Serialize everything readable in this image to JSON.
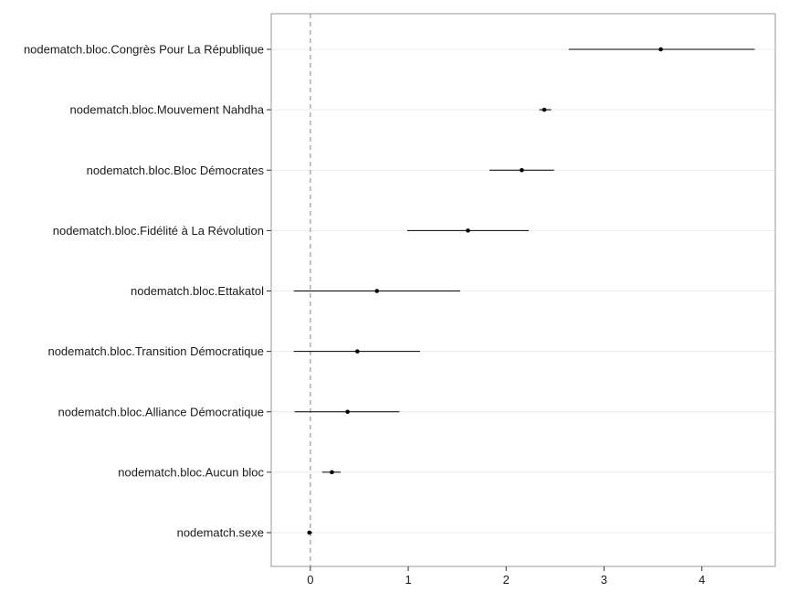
{
  "chart_data": {
    "type": "scatter",
    "subtype": "coefficient-plot-with-intervals",
    "title": "",
    "xlabel": "",
    "ylabel": "",
    "xlim": [
      -0.4,
      4.75
    ],
    "x_ticks": [
      0,
      1,
      2,
      3,
      4
    ],
    "x_tick_labels": [
      "0",
      "1",
      "2",
      "3",
      "4"
    ],
    "reference_line": {
      "x": 0,
      "style": "dashed"
    },
    "grid": true,
    "legend": "none",
    "colors": {
      "point": "#000000",
      "interval": "#000000",
      "reference_line": "#999999",
      "grid": "#ebebeb",
      "panel_border": "#999999"
    },
    "categories": [
      "nodematch.bloc.Congrès Pour La République",
      "nodematch.bloc.Mouvement Nahdha",
      "nodematch.bloc.Bloc Démocrates",
      "nodematch.bloc.Fidélité à La Révolution",
      "nodematch.bloc.Ettakatol",
      "nodematch.bloc.Transition Démocratique",
      "nodematch.bloc.Alliance Démocratique",
      "nodematch.bloc.Aucun bloc",
      "nodematch.sexe"
    ],
    "estimates": [
      3.58,
      2.39,
      2.16,
      1.61,
      0.68,
      0.48,
      0.38,
      0.22,
      -0.01
    ],
    "lower": [
      2.64,
      2.34,
      1.83,
      0.99,
      -0.17,
      -0.17,
      -0.16,
      0.12,
      -0.03
    ],
    "upper": [
      4.54,
      2.46,
      2.49,
      2.23,
      1.53,
      1.12,
      0.91,
      0.31,
      0.02
    ]
  }
}
